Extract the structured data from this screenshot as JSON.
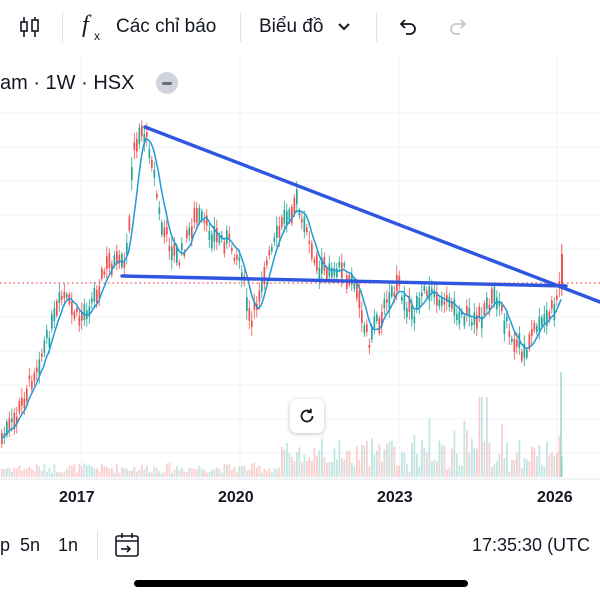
{
  "toolbar": {
    "indicators_label": "Các chỉ báo",
    "chart_type_label": "Biểu đồ"
  },
  "symbol": {
    "text": "am · 1W · HSX"
  },
  "x_axis": {
    "labels": [
      "2017",
      "2020",
      "2023",
      "2026"
    ]
  },
  "bottom": {
    "timeframes": [
      "p",
      "5n",
      "1n"
    ],
    "clock": "17:35:30 (UTC"
  },
  "colors": {
    "trendline": "#2f56e0",
    "ma": "#1e9bd8",
    "up": "#26a69a",
    "down": "#ef5350",
    "price_line": "#ef5350"
  },
  "icons": [
    "candles-icon",
    "function-icon",
    "chevron-down-icon",
    "undo-icon",
    "redo-icon",
    "reset-icon",
    "date-range-icon"
  ]
}
